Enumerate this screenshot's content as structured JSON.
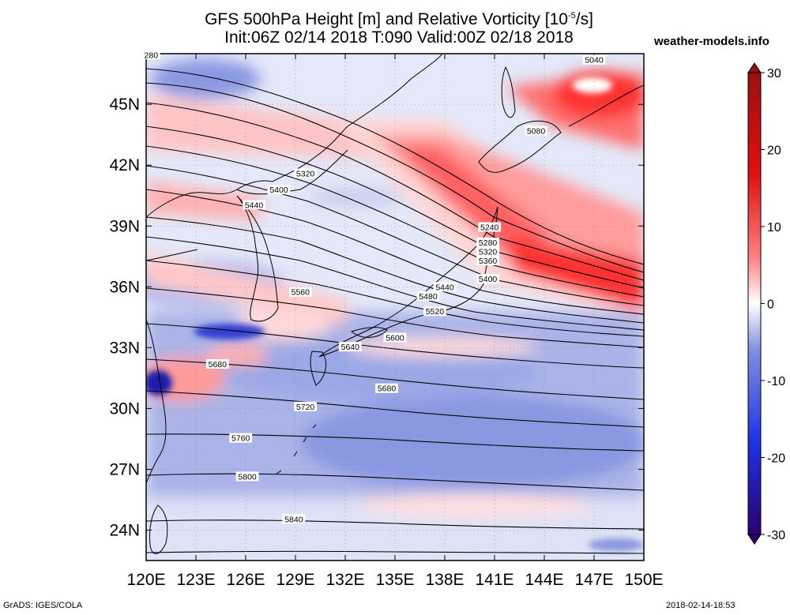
{
  "title": {
    "line1_pre": "GFS 500hPa Height [m] and Relative Vorticity [10",
    "line1_exp": "-5",
    "line1_post": "/s]",
    "line2": "Init:06Z 02/14 2018 T:090 Valid:00Z 02/18 2018"
  },
  "site": "weather-models.info",
  "footer": {
    "left": "GrADS: IGES/COLA",
    "right": "2018-02-14-18:53"
  },
  "map": {
    "projection": "lat-lon",
    "lon_range": [
      120,
      150
    ],
    "lat_range": [
      22.5,
      47.5
    ],
    "lon_ticks": [
      {
        "value": 120,
        "label": "120E"
      },
      {
        "value": 123,
        "label": "123E"
      },
      {
        "value": 126,
        "label": "126E"
      },
      {
        "value": 129,
        "label": "129E"
      },
      {
        "value": 132,
        "label": "132E"
      },
      {
        "value": 135,
        "label": "135E"
      },
      {
        "value": 138,
        "label": "138E"
      },
      {
        "value": 141,
        "label": "141E"
      },
      {
        "value": 144,
        "label": "144E"
      },
      {
        "value": 147,
        "label": "147E"
      },
      {
        "value": 150,
        "label": "150E"
      }
    ],
    "lat_ticks": [
      {
        "value": 24,
        "label": "24N"
      },
      {
        "value": 27,
        "label": "27N"
      },
      {
        "value": 30,
        "label": "30N"
      },
      {
        "value": 33,
        "label": "33N"
      },
      {
        "value": 36,
        "label": "36N"
      },
      {
        "value": 39,
        "label": "39N"
      },
      {
        "value": 42,
        "label": "42N"
      },
      {
        "value": 45,
        "label": "45N"
      }
    ],
    "grid": true
  },
  "colorbar": {
    "min": -30,
    "max": 30,
    "ticks": [
      {
        "value": 30,
        "label": "30"
      },
      {
        "value": 20,
        "label": "20"
      },
      {
        "value": 10,
        "label": "10"
      },
      {
        "value": 0,
        "label": "0"
      },
      {
        "value": -10,
        "label": "-10"
      },
      {
        "value": -20,
        "label": "-20"
      },
      {
        "value": -30,
        "label": "-30"
      }
    ],
    "colors": {
      "neg_max": "#2a006e",
      "neg_mid": "#1e32e6",
      "neutral": "#ffffff",
      "pos_mid": "#ff2020",
      "pos_max": "#9a1010"
    }
  },
  "contour_labels": [
    {
      "text": "5040",
      "lon": 147.0,
      "lat": 47.2
    },
    {
      "text": "5080",
      "lon": 143.5,
      "lat": 43.7
    },
    {
      "text": "5240",
      "lon": 140.7,
      "lat": 38.95
    },
    {
      "text": "5280",
      "lon": 140.6,
      "lat": 38.2
    },
    {
      "text": "5320",
      "lon": 140.6,
      "lat": 37.75
    },
    {
      "text": "5360",
      "lon": 140.6,
      "lat": 37.3
    },
    {
      "text": "5400",
      "lon": 140.6,
      "lat": 36.4
    },
    {
      "text": "5440",
      "lon": 138.0,
      "lat": 36.0
    },
    {
      "text": "5480",
      "lon": 137.0,
      "lat": 35.55
    },
    {
      "text": "5520",
      "lon": 137.4,
      "lat": 34.8
    },
    {
      "text": "5600",
      "lon": 135.0,
      "lat": 33.5
    },
    {
      "text": "5640",
      "lon": 132.3,
      "lat": 33.05
    },
    {
      "text": "5680",
      "lon": 134.5,
      "lat": 31.0
    },
    {
      "text": "5720",
      "lon": 129.6,
      "lat": 30.1
    },
    {
      "text": "5760",
      "lon": 125.7,
      "lat": 28.55
    },
    {
      "text": "5800",
      "lon": 126.1,
      "lat": 26.65
    },
    {
      "text": "5840",
      "lon": 128.9,
      "lat": 24.55
    },
    {
      "text": "5320",
      "lon": 129.6,
      "lat": 41.6
    },
    {
      "text": "5400",
      "lon": 128.0,
      "lat": 40.8
    },
    {
      "text": "5440",
      "lon": 126.5,
      "lat": 40.05
    },
    {
      "text": "5560",
      "lon": 129.3,
      "lat": 35.75
    },
    {
      "text": "5680",
      "lon": 124.3,
      "lat": 32.2
    },
    {
      "text": "280",
      "lon": 120.3,
      "lat": 47.45
    }
  ]
}
